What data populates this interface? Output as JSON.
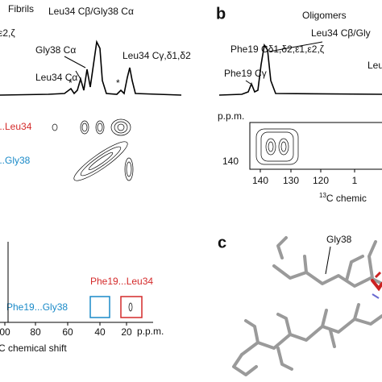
{
  "panels": {
    "a": {
      "title": "Fibrils",
      "cut_label": "ε2,ζ",
      "peaks": [
        "Leu34 Cβ/Gly38 Cα",
        "Gly38 Cα",
        "Leu34 Cα",
        "Leu34 Cγ,δ1,δ2"
      ],
      "stars": [
        "*",
        "*"
      ],
      "cross_peaks": {
        "leu34": "...Leu34",
        "gly38": "...Gly38",
        "phe_leu": "Phe19...Leu34",
        "phe_gly": "Phe19...Gly38"
      },
      "x_ticks": [
        "00",
        "80",
        "60",
        "40",
        "20"
      ],
      "x_unit": "p.p.m.",
      "x_label": "C chemical shift"
    },
    "b": {
      "letter": "b",
      "title": "Oligomers",
      "peaks": [
        "Leu34 Cβ/Gly",
        "Phe19 Cδ1,δ2,ε1,ε2,ζ",
        "Phe19 Cγ",
        "Leu"
      ],
      "y_unit": "p.p.m.",
      "y_tick": "140",
      "x_ticks": [
        "140",
        "130",
        "120",
        "1"
      ],
      "x_label_sup": "13",
      "x_label": "C chemic"
    },
    "c": {
      "letter": "c",
      "label": "Gly38"
    }
  }
}
